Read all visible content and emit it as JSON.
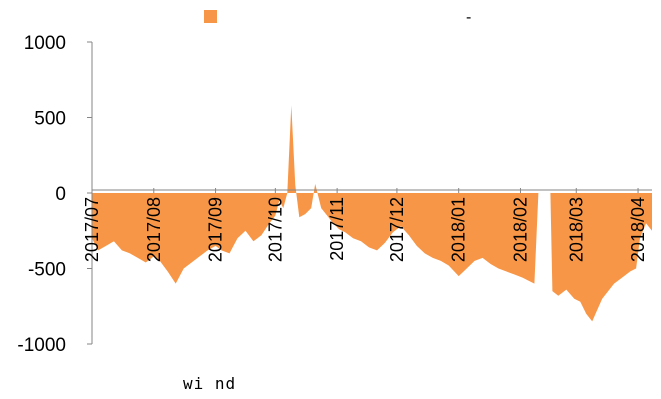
{
  "chart_data": {
    "type": "area",
    "title": "",
    "xlabel": "",
    "ylabel": "",
    "ylim": [
      -1000,
      1000
    ],
    "yticks": [
      1000,
      500,
      0,
      -500,
      -1000
    ],
    "x_range": [
      "2017-07-01",
      "2018-04-08"
    ],
    "xtick_labels": [
      "2017/07",
      "2017/08",
      "2017/09",
      "2017/10",
      "2017/11",
      "2017/12",
      "2018/01",
      "2018/02",
      "2018/03",
      "2018/04"
    ],
    "xtick_dates": [
      "2017-07-01",
      "2017-08-01",
      "2017-09-01",
      "2017-10-01",
      "2017-11-01",
      "2017-12-01",
      "2018-01-01",
      "2018-02-01",
      "2018-03-01",
      "2018-04-01"
    ],
    "series": [
      {
        "name": "",
        "color": "#f79646",
        "x": [
          "2017-07-01",
          "2017-07-04",
          "2017-07-08",
          "2017-07-12",
          "2017-07-16",
          "2017-07-20",
          "2017-07-24",
          "2017-07-28",
          "2017-08-01",
          "2017-08-04",
          "2017-08-08",
          "2017-08-12",
          "2017-08-16",
          "2017-08-20",
          "2017-08-24",
          "2017-08-28",
          "2017-09-01",
          "2017-09-04",
          "2017-09-08",
          "2017-09-12",
          "2017-09-16",
          "2017-09-20",
          "2017-09-24",
          "2017-09-28",
          "2017-10-01",
          "2017-10-03",
          "2017-10-05",
          "2017-10-07",
          "2017-10-09",
          "2017-10-11",
          "2017-10-13",
          "2017-10-16",
          "2017-10-19",
          "2017-10-21",
          "2017-10-24",
          "2017-10-27",
          "2017-10-30",
          "2017-11-02",
          "2017-11-05",
          "2017-11-09",
          "2017-11-13",
          "2017-11-17",
          "2017-11-21",
          "2017-11-25",
          "2017-11-29",
          "2017-12-03",
          "2017-12-07",
          "2017-12-11",
          "2017-12-15",
          "2017-12-19",
          "2017-12-23",
          "2017-12-27",
          "2018-01-01",
          "2018-01-05",
          "2018-01-09",
          "2018-01-13",
          "2018-01-17",
          "2018-01-21",
          "2018-01-25",
          "2018-01-29",
          "2018-02-02",
          "2018-02-05",
          "2018-02-08",
          "2018-02-10",
          "2018-02-11",
          "2018-02-16",
          "2018-02-17",
          "2018-02-20",
          "2018-02-24",
          "2018-02-28",
          "2018-03-03",
          "2018-03-06",
          "2018-03-09",
          "2018-03-12",
          "2018-03-14",
          "2018-03-17",
          "2018-03-20",
          "2018-03-24",
          "2018-03-28",
          "2018-03-31",
          "2018-04-02",
          "2018-04-05",
          "2018-04-08"
        ],
        "values": [
          -300,
          -380,
          -350,
          -320,
          -380,
          -400,
          -430,
          -460,
          -420,
          -450,
          -520,
          -600,
          -500,
          -460,
          -420,
          -380,
          -350,
          -380,
          -400,
          -300,
          -250,
          -320,
          -280,
          -200,
          -150,
          -50,
          -100,
          0,
          580,
          50,
          -160,
          -140,
          -100,
          60,
          -100,
          -150,
          -200,
          -240,
          -260,
          -300,
          -320,
          -360,
          -380,
          -330,
          -260,
          -220,
          -280,
          -350,
          -400,
          -430,
          -450,
          -480,
          -550,
          -500,
          -450,
          -430,
          -470,
          -500,
          -520,
          -540,
          -560,
          -580,
          -600,
          0,
          0,
          0,
          -650,
          -680,
          -640,
          -700,
          -720,
          -800,
          -850,
          -760,
          -700,
          -650,
          -600,
          -560,
          -520,
          -500,
          -300,
          -200,
          -250
        ]
      }
    ],
    "legend": {
      "position": "top",
      "label": "",
      "swatch_color": "#f79646"
    },
    "grid": false
  },
  "legend_dash": "-",
  "source_text": "wi nd"
}
